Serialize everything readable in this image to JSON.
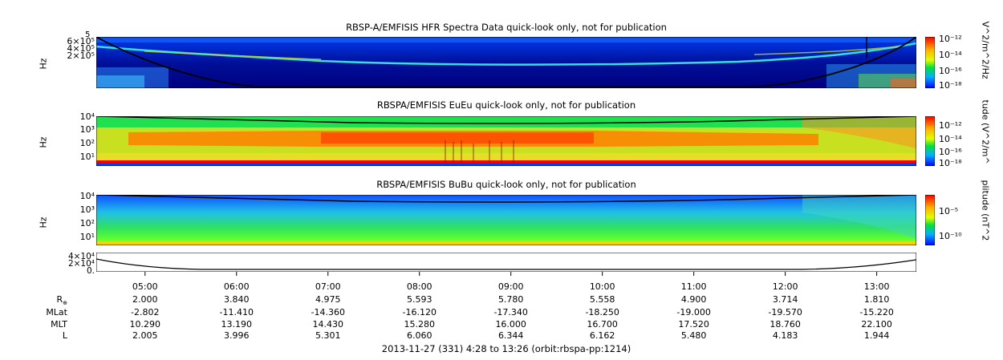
{
  "chart_data": [
    {
      "type": "heatmap",
      "title": "RBSP-A/EMFISIS  HFR Spectra Data quick-look only, not for publication",
      "ylabel": "Hz",
      "yticks": [
        "6×10⁵",
        "4×10⁵",
        "2×10⁵"
      ],
      "ytick_top": "5",
      "colorbar_label": "V^2/m^2/Hz",
      "colorbar_ticks": [
        "10⁻¹²",
        "10⁻¹⁴",
        "10⁻¹⁶",
        "10⁻¹⁸"
      ]
    },
    {
      "type": "heatmap",
      "title": "RBSPA/EMFISIS  EuEu quick-look only, not for publication",
      "ylabel": "Hz",
      "yticks": [
        "10⁴",
        "10³",
        "10²",
        "10¹"
      ],
      "colorbar_label": "tude (V^2/m^",
      "colorbar_ticks": [
        "10⁻¹²",
        "10⁻¹⁴",
        "10⁻¹⁶",
        "10⁻¹⁸"
      ]
    },
    {
      "type": "heatmap",
      "title": "RBSPA/EMFISIS  BuBu quick-look only, not for publication",
      "ylabel": "Hz",
      "yticks": [
        "10⁴",
        "10³",
        "10²",
        "10¹"
      ],
      "colorbar_label": "plitude (nT^2",
      "colorbar_ticks": [
        "10⁻⁵",
        "10⁻¹⁰"
      ]
    },
    {
      "type": "line",
      "yticks": [
        "4×10⁴",
        "2×10⁴",
        "0."
      ]
    }
  ],
  "xaxis": {
    "ticks": [
      "05:00",
      "06:00",
      "07:00",
      "08:00",
      "09:00",
      "10:00",
      "11:00",
      "12:00",
      "13:00"
    ]
  },
  "ephemeris": {
    "row_labels": [
      "R",
      "MLat",
      "MLT",
      "L"
    ],
    "rows": [
      [
        "2.000",
        "3.840",
        "4.975",
        "5.593",
        "5.780",
        "5.558",
        "4.900",
        "3.714",
        "1.810"
      ],
      [
        "-2.802",
        "-11.410",
        "-14.360",
        "-16.120",
        "-17.340",
        "-18.250",
        "-19.000",
        "-19.570",
        "-15.220"
      ],
      [
        "10.290",
        "13.190",
        "14.430",
        "15.280",
        "16.000",
        "16.700",
        "17.520",
        "18.760",
        "22.100"
      ],
      [
        "2.005",
        "3.996",
        "5.301",
        "6.060",
        "6.344",
        "6.162",
        "5.480",
        "4.183",
        "1.944"
      ]
    ]
  },
  "footer": "2013-11-27 (331) 4:28 to 13:26 (orbit:rbspa-pp:1214)",
  "colors": {
    "bg_blue": "#0000a0",
    "line": "#000000"
  }
}
